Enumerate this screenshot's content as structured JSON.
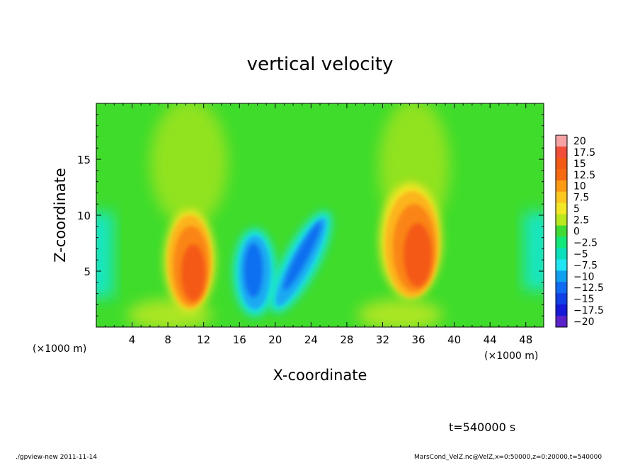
{
  "chart_data": {
    "type": "heatmap",
    "title": "vertical velocity",
    "xlabel": "X-coordinate",
    "ylabel": "Z-coordinate",
    "x_unit_left": "(×1000 m)",
    "x_unit_right": "(×1000 m)",
    "xlim": [
      0,
      50
    ],
    "ylim": [
      0,
      20
    ],
    "x_ticks": [
      4,
      8,
      12,
      16,
      20,
      24,
      28,
      32,
      36,
      40,
      44,
      48
    ],
    "y_ticks": [
      5,
      10,
      15
    ],
    "colorbar": {
      "levels": [
        20,
        17.5,
        15,
        12.5,
        10,
        7.5,
        5,
        2.5,
        0,
        -2.5,
        -5,
        -7.5,
        -10,
        -12.5,
        -15,
        -17.5,
        -20
      ],
      "level_labels": [
        "20",
        "17.5",
        "15",
        "12.5",
        "10",
        "7.5",
        "5",
        "2.5",
        "0",
        "−2.5",
        "−5",
        "−7.5",
        "−10",
        "−12.5",
        "−15",
        "−17.5",
        "−20"
      ],
      "colors": [
        "#f4a2a2",
        "#f24f3b",
        "#f25a16",
        "#f86a10",
        "#fc9a13",
        "#fcc820",
        "#f3e825",
        "#b9e81c",
        "#3fda33",
        "#11e87a",
        "#0ae0bb",
        "#1ee6f4",
        "#0fa0f0",
        "#0f6cf2",
        "#1140e6",
        "#141ad8",
        "#5a22c8"
      ]
    },
    "features": [
      {
        "kind": "updraft",
        "x_center": 10.7,
        "z_center": 5.0,
        "peak": 13
      },
      {
        "kind": "downdraft",
        "x_center": 17.8,
        "z_center": 4.5,
        "peak": -12
      },
      {
        "kind": "downdraft",
        "x_center": 22.5,
        "z_center": 6.0,
        "peak": -12
      },
      {
        "kind": "updraft",
        "x_center": 35.8,
        "z_center": 6.5,
        "peak": 13
      }
    ]
  },
  "time_label": "t=540000 s",
  "footer_left": "./gpview-new  2011-11-14",
  "footer_right": "MarsCond_VelZ.nc@VelZ,x=0:50000,z=0:20000,t=540000"
}
